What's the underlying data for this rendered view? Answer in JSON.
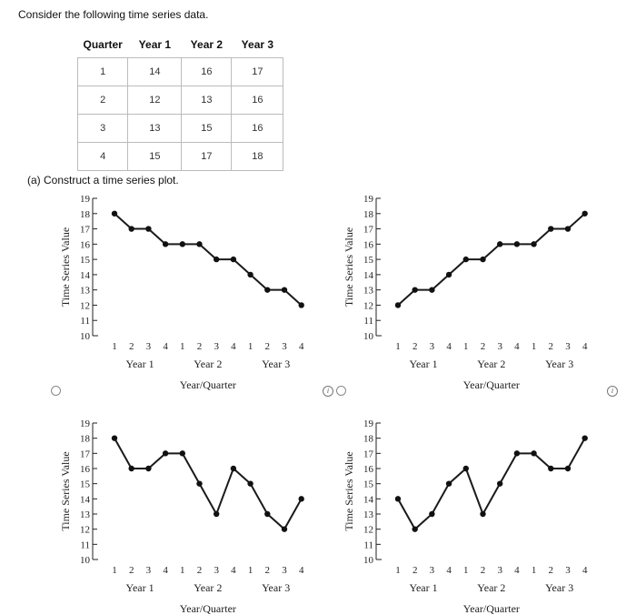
{
  "prompt": "Consider the following time series data.",
  "part_a": "(a)  Construct a time series plot.",
  "table": {
    "headers": [
      "Quarter",
      "Year 1",
      "Year 2",
      "Year 3"
    ],
    "rows": [
      [
        "1",
        "14",
        "16",
        "17"
      ],
      [
        "2",
        "12",
        "13",
        "16"
      ],
      [
        "3",
        "13",
        "15",
        "16"
      ],
      [
        "4",
        "15",
        "17",
        "18"
      ]
    ]
  },
  "info_glyph": "i",
  "chart_data": [
    {
      "type": "line",
      "ylabel": "Time Series Value",
      "xlabel": "Year/Quarter",
      "ylim": [
        10,
        19
      ],
      "yticks": [
        "10",
        "11",
        "12",
        "13",
        "14",
        "15",
        "16",
        "17",
        "18",
        "19"
      ],
      "quarter_labels": [
        "1",
        "2",
        "3",
        "4",
        "1",
        "2",
        "3",
        "4",
        "1",
        "2",
        "3",
        "4"
      ],
      "year_labels": [
        "Year 1",
        "Year 2",
        "Year 3"
      ],
      "values": [
        18,
        17,
        17,
        16,
        16,
        16,
        15,
        15,
        14,
        13,
        13,
        12
      ]
    },
    {
      "type": "line",
      "ylabel": "Time Series Value",
      "xlabel": "Year/Quarter",
      "ylim": [
        10,
        19
      ],
      "yticks": [
        "10",
        "11",
        "12",
        "13",
        "14",
        "15",
        "16",
        "17",
        "18",
        "19"
      ],
      "quarter_labels": [
        "1",
        "2",
        "3",
        "4",
        "1",
        "2",
        "3",
        "4",
        "1",
        "2",
        "3",
        "4"
      ],
      "year_labels": [
        "Year 1",
        "Year 2",
        "Year 3"
      ],
      "values": [
        12,
        13,
        13,
        14,
        15,
        15,
        16,
        16,
        16,
        17,
        17,
        18
      ]
    },
    {
      "type": "line",
      "ylabel": "Time Series Value",
      "xlabel": "Year/Quarter",
      "ylim": [
        10,
        19
      ],
      "yticks": [
        "10",
        "11",
        "12",
        "13",
        "14",
        "15",
        "16",
        "17",
        "18",
        "19"
      ],
      "quarter_labels": [
        "1",
        "2",
        "3",
        "4",
        "1",
        "2",
        "3",
        "4",
        "1",
        "2",
        "3",
        "4"
      ],
      "year_labels": [
        "Year 1",
        "Year 2",
        "Year 3"
      ],
      "values": [
        18,
        16,
        16,
        17,
        17,
        15,
        13,
        16,
        15,
        13,
        12,
        14
      ]
    },
    {
      "type": "line",
      "ylabel": "Time Series Value",
      "xlabel": "Year/Quarter",
      "ylim": [
        10,
        19
      ],
      "yticks": [
        "10",
        "11",
        "12",
        "13",
        "14",
        "15",
        "16",
        "17",
        "18",
        "19"
      ],
      "quarter_labels": [
        "1",
        "2",
        "3",
        "4",
        "1",
        "2",
        "3",
        "4",
        "1",
        "2",
        "3",
        "4"
      ],
      "year_labels": [
        "Year 1",
        "Year 2",
        "Year 3"
      ],
      "values": [
        14,
        12,
        13,
        15,
        16,
        13,
        15,
        17,
        17,
        16,
        16,
        18
      ]
    }
  ]
}
